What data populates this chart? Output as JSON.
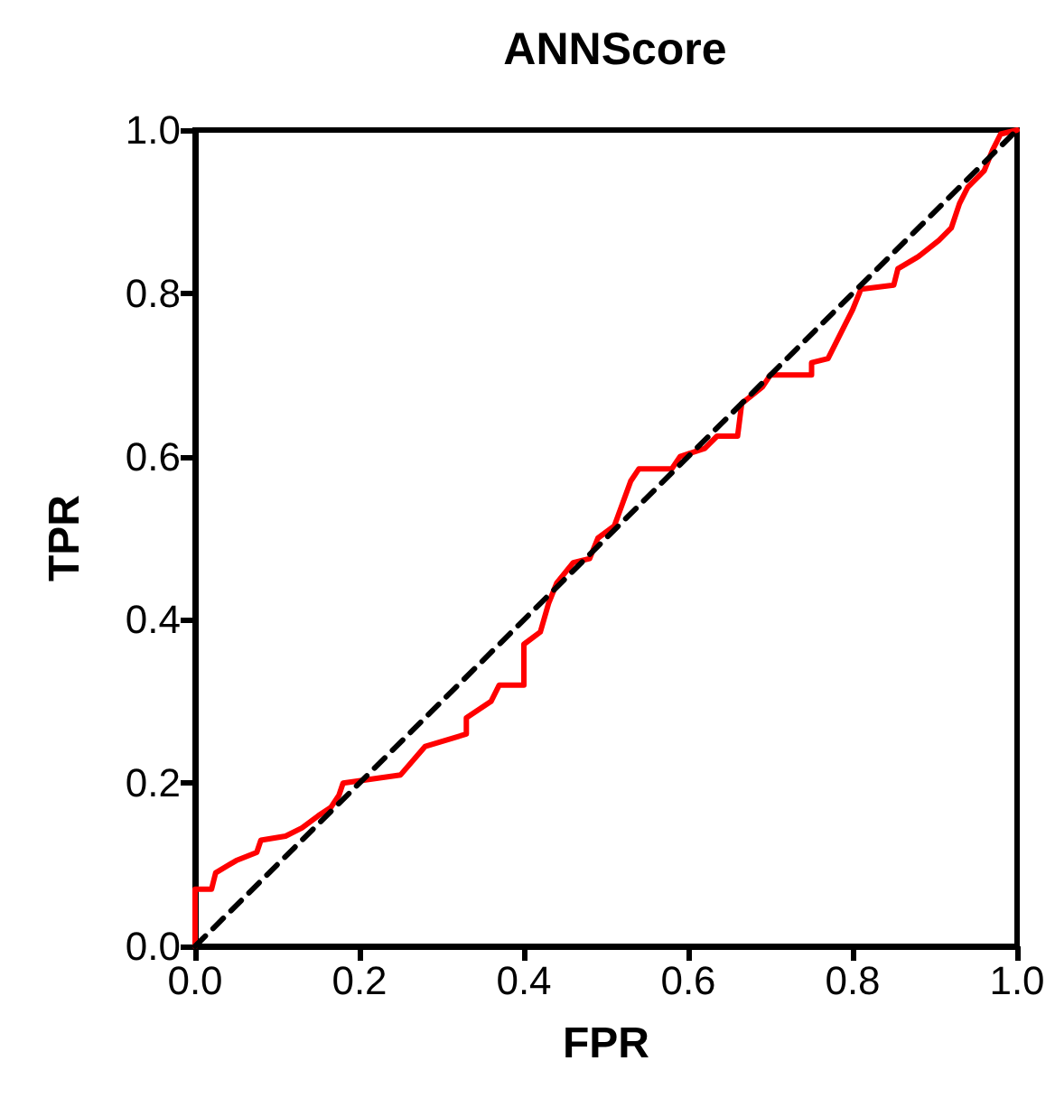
{
  "chart_data": {
    "type": "line",
    "title": "ANNScore",
    "xlabel": "FPR",
    "ylabel": "TPR",
    "grid": false,
    "marker": "none",
    "xlim": [
      0,
      1
    ],
    "ylim": [
      0,
      1
    ],
    "xticks": [
      {
        "value": 0,
        "label": "0.0"
      },
      {
        "value": 0.2,
        "label": "0.2"
      },
      {
        "value": 0.4,
        "label": "0.4"
      },
      {
        "value": 0.6,
        "label": "0.6"
      },
      {
        "value": 0.8,
        "label": "0.8"
      },
      {
        "value": 1,
        "label": "1.0"
      }
    ],
    "yticks": [
      {
        "value": 0,
        "label": "0.0"
      },
      {
        "value": 0.2,
        "label": "0.2"
      },
      {
        "value": 0.4,
        "label": "0.4"
      },
      {
        "value": 0.6,
        "label": "0.6"
      },
      {
        "value": 0.8,
        "label": "0.8"
      },
      {
        "value": 1,
        "label": "1.0"
      }
    ],
    "series": [
      {
        "color": "#ff0000",
        "line_style": "solid",
        "x": [
          0,
          0,
          0.02,
          0.025,
          0.05,
          0.075,
          0.08,
          0.11,
          0.13,
          0.15,
          0.165,
          0.175,
          0.18,
          0.25,
          0.28,
          0.33,
          0.33,
          0.36,
          0.37,
          0.4,
          0.4,
          0.42,
          0.43,
          0.44,
          0.46,
          0.48,
          0.49,
          0.51,
          0.53,
          0.54,
          0.58,
          0.59,
          0.62,
          0.635,
          0.66,
          0.665,
          0.69,
          0.7,
          0.75,
          0.75,
          0.77,
          0.79,
          0.8,
          0.81,
          0.85,
          0.855,
          0.88,
          0.905,
          0.92,
          0.93,
          0.94,
          0.96,
          0.97,
          0.98,
          1
        ],
        "values": [
          0,
          0.07,
          0.07,
          0.09,
          0.105,
          0.115,
          0.13,
          0.135,
          0.145,
          0.16,
          0.17,
          0.185,
          0.2,
          0.21,
          0.245,
          0.26,
          0.28,
          0.3,
          0.32,
          0.32,
          0.37,
          0.385,
          0.42,
          0.445,
          0.47,
          0.475,
          0.5,
          0.515,
          0.57,
          0.585,
          0.585,
          0.6,
          0.61,
          0.625,
          0.625,
          0.665,
          0.685,
          0.7,
          0.7,
          0.715,
          0.72,
          0.76,
          0.78,
          0.805,
          0.81,
          0.83,
          0.845,
          0.865,
          0.88,
          0.91,
          0.93,
          0.95,
          0.975,
          0.995,
          1
        ]
      },
      {
        "color": "#000000",
        "line_style": "dashed",
        "x": [
          0,
          1
        ],
        "values": [
          0,
          1
        ]
      }
    ]
  }
}
